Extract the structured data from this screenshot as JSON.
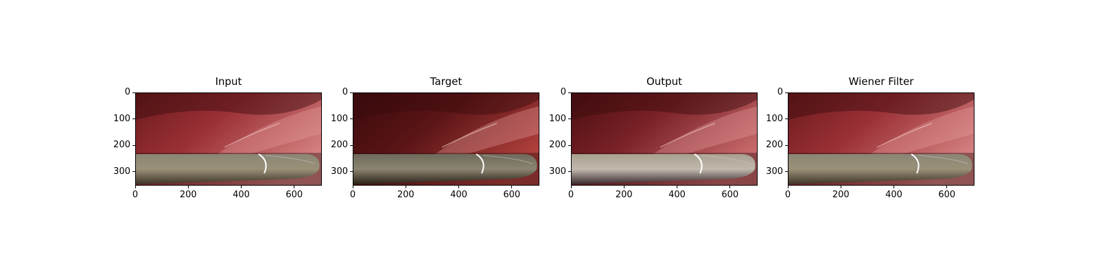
{
  "figure": {
    "panels": [
      {
        "title": "Input",
        "variant": "input"
      },
      {
        "title": "Target",
        "variant": "target"
      },
      {
        "title": "Output",
        "variant": "output"
      },
      {
        "title": "Wiener Filter",
        "variant": "wiener"
      }
    ],
    "y_ticks": [
      "0",
      "100",
      "200",
      "300"
    ],
    "x_ticks": [
      "0",
      "200",
      "400",
      "600"
    ],
    "y_tick_values": [
      0,
      100,
      200,
      300
    ],
    "x_tick_values": [
      0,
      200,
      400,
      600
    ],
    "image_extent": {
      "width": 704,
      "height": 352
    },
    "scene": {
      "description_colors": {
        "tissue_dark": "#5a1416",
        "tissue_mid": "#9a3036",
        "tissue_light": "#d48080",
        "instrument": "#9a9078",
        "instrument_tip_highlight": "#ffffff"
      }
    }
  }
}
